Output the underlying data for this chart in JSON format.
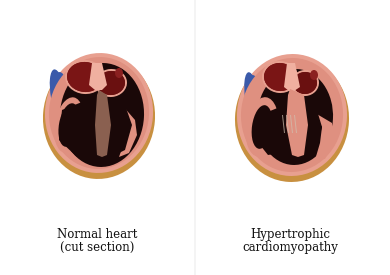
{
  "label_left_line1": "Normal heart",
  "label_left_line2": "(cut section)",
  "label_right_line1": "Hypertrophic",
  "label_right_line2": "cardiomyopathy",
  "bg_color": "#ffffff",
  "label_fontsize": 8.5,
  "label_color": "#111111",
  "pink_outer": "#e8a090",
  "pink_mid": "#df9080",
  "golden_rim": "#c89040",
  "dark_cavity": "#1a0808",
  "dark_brown": "#3a1510",
  "med_dark": "#5a2510",
  "atrium_red": "#7a1515",
  "septum_color": "#8a6050",
  "blue_vessel": "#3a5aaa",
  "red_vessel": "#8a2020",
  "pink_light": "#f0b0a0",
  "pink_wall": "#e09888"
}
